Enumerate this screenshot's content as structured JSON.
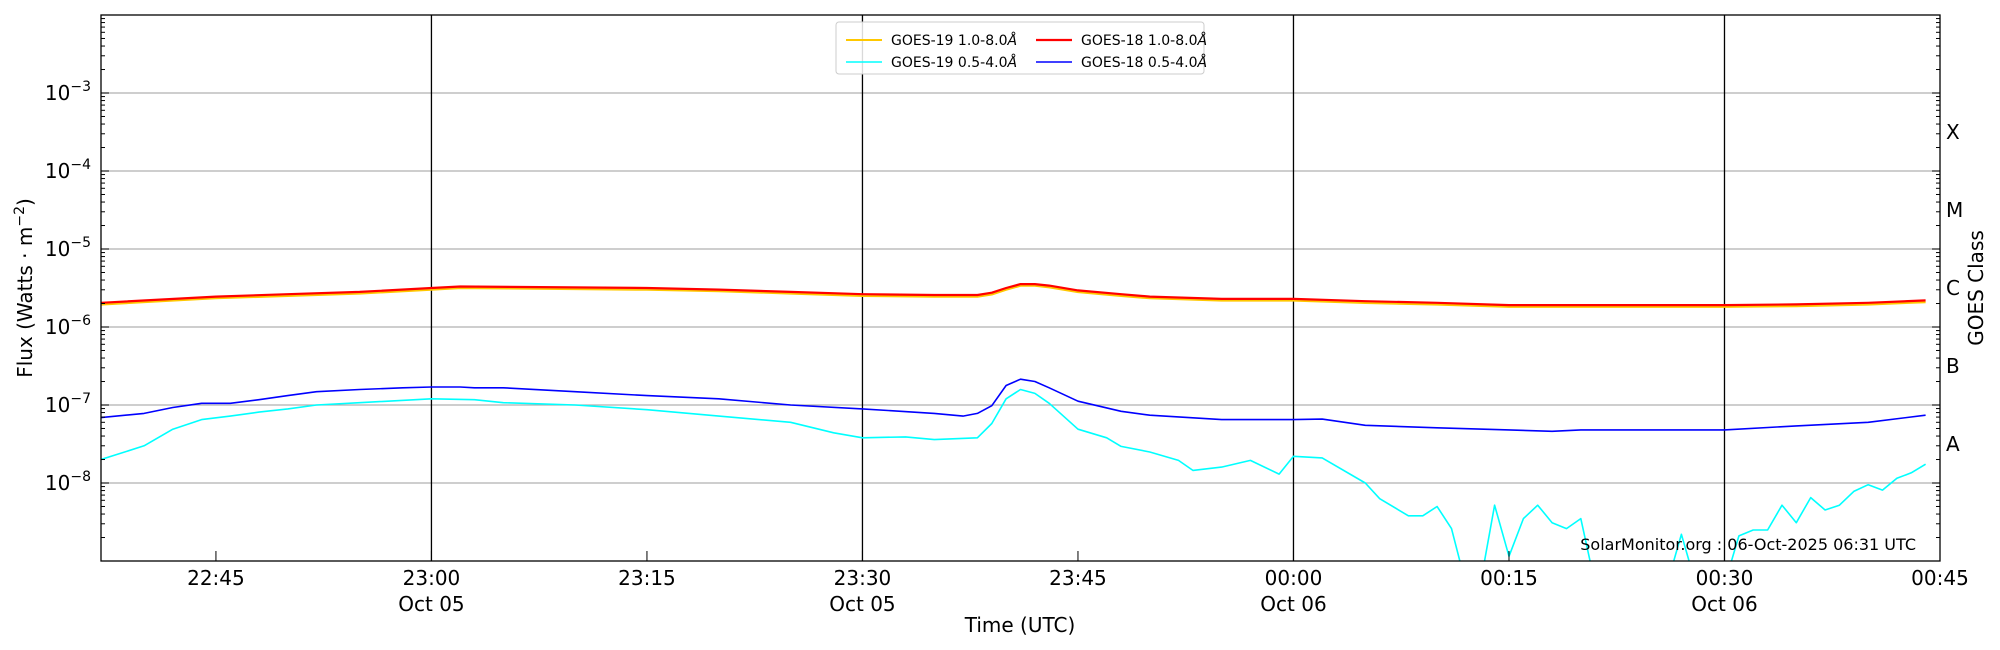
{
  "chart_data": {
    "type": "line",
    "xlabel": "Time (UTC)",
    "ylabel": "Flux (Watts · m",
    "ylabel_sup": "−2",
    "ylabel_close": ")",
    "right_label": "GOES Class",
    "yscale": "log",
    "ylim": [
      1e-09,
      0.01
    ],
    "xlim": [
      "22:37",
      "00:45"
    ],
    "grid": "horizontal at decades",
    "legend_position": "top-center",
    "watermark": "SolarMonitor.org : 06-Oct-2025 06:31 UTC",
    "y_ticks": [
      {
        "exp": -3,
        "base": "10",
        "sup": "−3"
      },
      {
        "exp": -4,
        "base": "10",
        "sup": "−4"
      },
      {
        "exp": -5,
        "base": "10",
        "sup": "−5"
      },
      {
        "exp": -6,
        "base": "10",
        "sup": "−6"
      },
      {
        "exp": -7,
        "base": "10",
        "sup": "−7"
      },
      {
        "exp": -8,
        "base": "10",
        "sup": "−8"
      }
    ],
    "x_ticks": [
      {
        "time": "22:45",
        "label": "22:45",
        "sub": ""
      },
      {
        "time": "23:00",
        "label": "23:00",
        "sub": "Oct 05"
      },
      {
        "time": "23:15",
        "label": "23:15",
        "sub": ""
      },
      {
        "time": "23:30",
        "label": "23:30",
        "sub": "Oct 05"
      },
      {
        "time": "23:45",
        "label": "23:45",
        "sub": ""
      },
      {
        "time": "00:00",
        "label": "00:00",
        "sub": "Oct 06"
      },
      {
        "time": "00:15",
        "label": "00:15",
        "sub": ""
      },
      {
        "time": "00:30",
        "label": "00:30",
        "sub": "Oct 06"
      },
      {
        "time": "00:45",
        "label": "00:45",
        "sub": ""
      }
    ],
    "vertical_lines": [
      "23:00",
      "23:30",
      "00:00",
      "00:30"
    ],
    "goes_classes": [
      {
        "label": "X",
        "exp": -3.5
      },
      {
        "label": "M",
        "exp": -4.5
      },
      {
        "label": "C",
        "exp": -5.5
      },
      {
        "label": "B",
        "exp": -6.5
      },
      {
        "label": "A",
        "exp": -7.5
      }
    ],
    "series": [
      {
        "name": "GOES-19 1.0-8.0Å",
        "label": "GOES-19 1.0-8.0",
        "color": "#ffc800",
        "width": 2,
        "x": [
          "22:37",
          "22:45",
          "22:50",
          "22:55",
          "23:00",
          "23:02",
          "23:15",
          "23:20",
          "23:25",
          "23:30",
          "23:35",
          "23:38",
          "23:39",
          "23:40",
          "23:41",
          "23:42",
          "23:43",
          "23:45",
          "23:48",
          "23:50",
          "23:55",
          "00:00",
          "00:05",
          "00:10",
          "00:15",
          "00:20",
          "00:30",
          "00:35",
          "00:40",
          "00:44"
        ],
        "values": [
          1.94e-06,
          2.33e-06,
          2.5e-06,
          2.68e-06,
          3e-06,
          3.15e-06,
          3e-06,
          2.87e-06,
          2.68e-06,
          2.5e-06,
          2.44e-06,
          2.44e-06,
          2.61e-06,
          3e-06,
          3.37e-06,
          3.37e-06,
          3.22e-06,
          2.8e-06,
          2.5e-06,
          2.33e-06,
          2.18e-06,
          2.18e-06,
          2.03e-06,
          1.94e-06,
          1.81e-06,
          1.81e-06,
          1.81e-06,
          1.85e-06,
          1.94e-06,
          2.08e-06
        ]
      },
      {
        "name": "GOES-18 1.0-8.0Å",
        "label": "GOES-18 1.0-8.0",
        "color": "#ff0000",
        "width": 2.2,
        "x": [
          "22:37",
          "22:45",
          "22:50",
          "22:55",
          "23:00",
          "23:02",
          "23:15",
          "23:20",
          "23:25",
          "23:30",
          "23:35",
          "23:38",
          "23:39",
          "23:40",
          "23:41",
          "23:42",
          "23:43",
          "23:45",
          "23:48",
          "23:50",
          "23:55",
          "00:00",
          "00:05",
          "00:10",
          "00:15",
          "00:20",
          "00:30",
          "00:35",
          "00:40",
          "00:44"
        ],
        "values": [
          2.04e-06,
          2.45e-06,
          2.63e-06,
          2.82e-06,
          3.16e-06,
          3.31e-06,
          3.16e-06,
          3.02e-06,
          2.82e-06,
          2.63e-06,
          2.57e-06,
          2.57e-06,
          2.75e-06,
          3.16e-06,
          3.55e-06,
          3.55e-06,
          3.39e-06,
          2.95e-06,
          2.63e-06,
          2.45e-06,
          2.29e-06,
          2.29e-06,
          2.14e-06,
          2.04e-06,
          1.91e-06,
          1.91e-06,
          1.91e-06,
          1.95e-06,
          2.04e-06,
          2.19e-06
        ]
      },
      {
        "name": "GOES-19 0.5-4.0Å",
        "label": "GOES-19 0.5-4.0",
        "color": "#00ffff",
        "width": 1.6,
        "x": [
          "22:37",
          "22:40",
          "22:42",
          "22:44",
          "22:46",
          "22:48",
          "22:50",
          "22:52",
          "22:55",
          "23:00",
          "23:03",
          "23:05",
          "23:10",
          "23:15",
          "23:20",
          "23:25",
          "23:28",
          "23:30",
          "23:33",
          "23:35",
          "23:38",
          "23:39",
          "23:40",
          "23:41",
          "23:42",
          "23:43",
          "23:45",
          "23:47",
          "23:48",
          "23:50",
          "23:52",
          "23:53",
          "23:55",
          "23:57",
          "23:59",
          "00:00",
          "00:02",
          "00:05",
          "00:06",
          "00:08",
          "00:09",
          "00:10",
          "00:11",
          "00:12",
          "00:13",
          "00:14",
          "00:15",
          "00:16",
          "00:17",
          "00:18",
          "00:19",
          "00:20",
          "00:21",
          "00:25",
          "00:26",
          "00:27",
          "00:28",
          "00:30",
          "00:31",
          "00:32",
          "00:33",
          "00:34",
          "00:35",
          "00:36",
          "00:37",
          "00:38",
          "00:39",
          "00:40",
          "00:41",
          "00:42",
          "00:43",
          "00:44"
        ],
        "values": [
          2e-08,
          3e-08,
          4.9e-08,
          6.5e-08,
          7.2e-08,
          8.1e-08,
          8.9e-08,
          1e-07,
          1.07e-07,
          1.2e-07,
          1.17e-07,
          1.07e-07,
          1e-07,
          8.7e-08,
          7.2e-08,
          6e-08,
          4.4e-08,
          3.8e-08,
          3.9e-08,
          3.6e-08,
          3.8e-08,
          5.8e-08,
          1.2e-07,
          1.58e-07,
          1.41e-07,
          1.05e-07,
          4.9e-08,
          3.8e-08,
          2.95e-08,
          2.5e-08,
          1.95e-08,
          1.45e-08,
          1.6e-08,
          1.95e-08,
          1.3e-08,
          2.2e-08,
          2.1e-08,
          1e-08,
          6.3e-09,
          3.8e-09,
          3.8e-09,
          5e-09,
          2.6e-09,
          5e-10,
          5e-10,
          5.2e-09,
          1.15e-09,
          3.5e-09,
          5.2e-09,
          3.1e-09,
          2.6e-09,
          3.5e-09,
          5e-10,
          5e-10,
          5e-10,
          2.2e-09,
          5e-10,
          5e-10,
          2.1e-09,
          2.5e-09,
          2.5e-09,
          5.2e-09,
          3.1e-09,
          6.5e-09,
          4.5e-09,
          5.2e-09,
          7.8e-09,
          9.5e-09,
          8.1e-09,
          1.15e-08,
          1.35e-08,
          1.74e-08
        ]
      },
      {
        "name": "GOES-18 0.5-4.0Å",
        "label": "GOES-18 0.5-4.0",
        "color": "#0000ff",
        "width": 1.6,
        "x": [
          "22:37",
          "22:40",
          "22:42",
          "22:44",
          "22:46",
          "22:48",
          "22:50",
          "22:52",
          "22:55",
          "22:58",
          "23:00",
          "23:02",
          "23:03",
          "23:05",
          "23:10",
          "23:15",
          "23:20",
          "23:25",
          "23:30",
          "23:35",
          "23:37",
          "23:38",
          "23:39",
          "23:40",
          "23:41",
          "23:42",
          "23:43",
          "23:45",
          "23:48",
          "23:50",
          "23:55",
          "00:00",
          "00:02",
          "00:05",
          "00:10",
          "00:15",
          "00:18",
          "00:20",
          "00:25",
          "00:30",
          "00:35",
          "00:40",
          "00:44"
        ],
        "values": [
          6.9e-08,
          7.8e-08,
          9.3e-08,
          1.05e-07,
          1.05e-07,
          1.17e-07,
          1.32e-07,
          1.48e-07,
          1.58e-07,
          1.66e-07,
          1.7e-07,
          1.7e-07,
          1.66e-07,
          1.66e-07,
          1.48e-07,
          1.32e-07,
          1.2e-07,
          1e-07,
          8.9e-08,
          7.8e-08,
          7.2e-08,
          7.8e-08,
          9.8e-08,
          1.78e-07,
          2.14e-07,
          2e-07,
          1.66e-07,
          1.12e-07,
          8.3e-08,
          7.4e-08,
          6.5e-08,
          6.5e-08,
          6.6e-08,
          5.5e-08,
          5.1e-08,
          4.8e-08,
          4.6e-08,
          4.8e-08,
          4.8e-08,
          4.8e-08,
          5.4e-08,
          6e-08,
          7.4e-08
        ]
      }
    ],
    "legend_order": [
      0,
      2,
      1,
      3
    ],
    "legend_suffix": "Å"
  }
}
